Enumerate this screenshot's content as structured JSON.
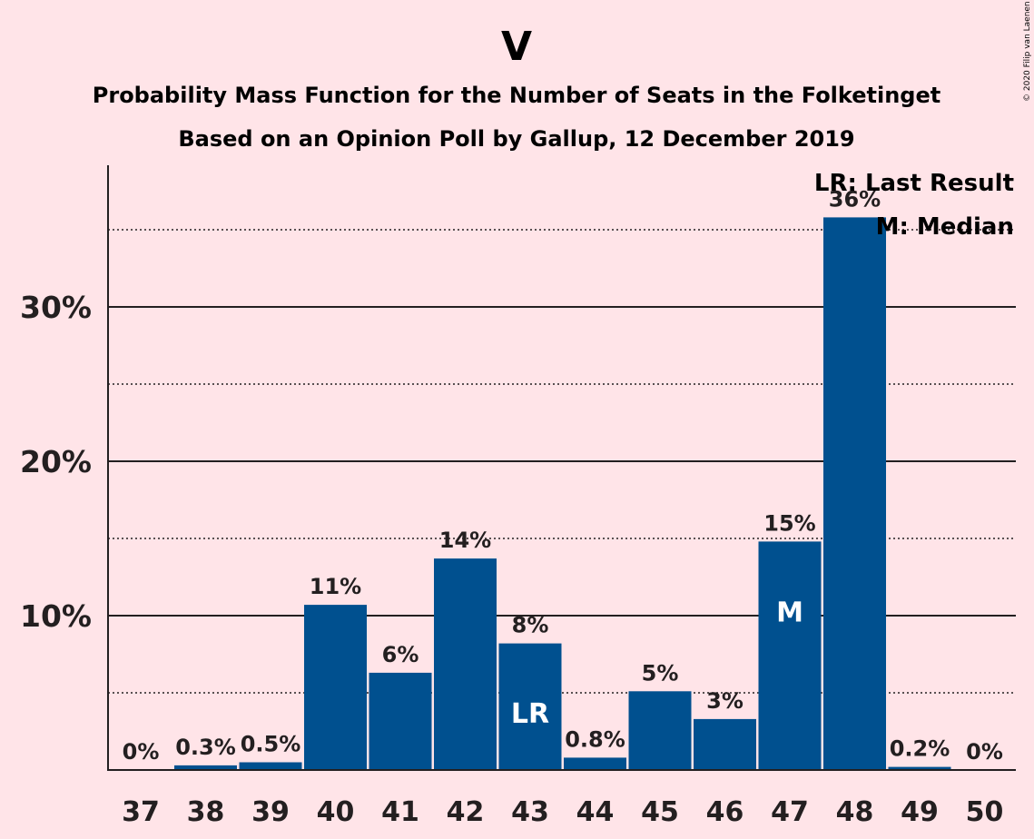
{
  "colors": {
    "background": "#FFE4E8",
    "bar": "#00508F",
    "text": "#231F20",
    "bar_label": "#FFFFFF"
  },
  "credit": "© 2020 Filip van Laenen",
  "chart_data": {
    "type": "bar",
    "title": "V",
    "subtitle": "Probability Mass Function for the Number of Seats in the Folketinget",
    "subtitle2": "Based on an Opinion Poll by Gallup, 12 December 2019",
    "xlabel": "",
    "ylabel": "",
    "categories": [
      "37",
      "38",
      "39",
      "40",
      "41",
      "42",
      "43",
      "44",
      "45",
      "46",
      "47",
      "48",
      "49",
      "50"
    ],
    "values": [
      0,
      0.3,
      0.5,
      10.7,
      6.3,
      13.7,
      8.2,
      0.8,
      5.1,
      3.3,
      14.8,
      35.8,
      0.2,
      0
    ],
    "data_labels": [
      "0%",
      "0.3%",
      "0.5%",
      "11%",
      "6%",
      "14%",
      "8%",
      "0.8%",
      "5%",
      "3%",
      "15%",
      "36%",
      "0.2%",
      "0%"
    ],
    "bar_markers": [
      {
        "category": "43",
        "text": "LR"
      },
      {
        "category": "47",
        "text": "M"
      }
    ],
    "ylim": [
      0,
      39
    ],
    "yticks": [
      {
        "value": 10,
        "label": "10%"
      },
      {
        "value": 20,
        "label": "20%"
      },
      {
        "value": 30,
        "label": "30%"
      }
    ],
    "minor_gridlines": [
      5,
      15,
      25,
      35
    ],
    "grid": true,
    "legend_position": "top-right",
    "legend": [
      "LR: Last Result",
      "M: Median"
    ]
  }
}
